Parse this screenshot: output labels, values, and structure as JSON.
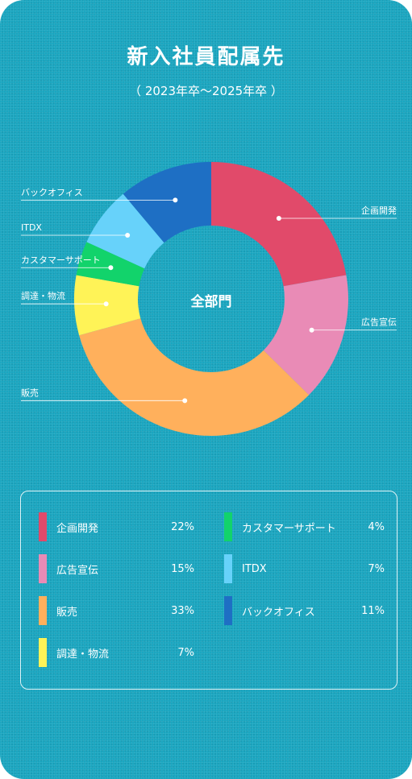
{
  "header": {
    "title": "新入社員配属先",
    "subtitle": "（ 2023年卒〜2025年卒 ）"
  },
  "chart_data": {
    "type": "pie",
    "center_label": "全部門",
    "categories": [
      "企画開発",
      "広告宣伝",
      "販売",
      "調達・物流",
      "カスタマーサポート",
      "ITDX",
      "バックオフィス"
    ],
    "values": [
      22,
      15,
      33,
      7,
      4,
      7,
      11
    ],
    "value_labels": [
      "22%",
      "15%",
      "33%",
      "7%",
      "4%",
      "7%",
      "11%"
    ],
    "colors": [
      "#e14a6a",
      "#e98bb6",
      "#ffb05c",
      "#fff357",
      "#12d36b",
      "#67d2fa",
      "#1e6fc4"
    ],
    "legend": "bottom"
  }
}
